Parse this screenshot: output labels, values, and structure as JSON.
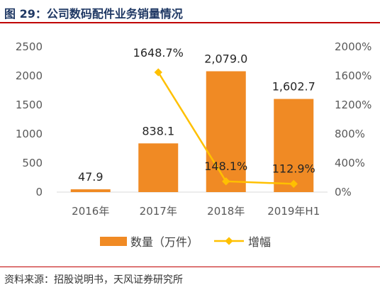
{
  "figure_title": "图 29：公司数码配件业务销量情况",
  "source": "资料来源：招股说明书，天风证券研究所",
  "chart_data": {
    "type": "bar",
    "categories": [
      "2016年",
      "2017年",
      "2018年",
      "2019年H1"
    ],
    "series": [
      {
        "name": "数量（万件）",
        "type": "bar",
        "axis": "left",
        "values": [
          47.9,
          838.1,
          2079.0,
          1602.7
        ],
        "labels": [
          "47.9",
          "838.1",
          "2,079.0",
          "1,602.7"
        ],
        "color": "#f08a24"
      },
      {
        "name": "增幅",
        "type": "line",
        "axis": "right",
        "values": [
          null,
          1648.7,
          148.1,
          112.9
        ],
        "labels": [
          "",
          "1648.7%",
          "148.1%",
          "112.9%"
        ],
        "color": "#ffc000"
      }
    ],
    "y_left": {
      "min": 0,
      "max": 2500,
      "ticks": [
        0,
        500,
        1000,
        1500,
        2000,
        2500
      ]
    },
    "y_right": {
      "min": 0,
      "max": 2000,
      "ticks": [
        "0%",
        "400%",
        "800%",
        "1200%",
        "1600%",
        "2000%"
      ]
    },
    "legend_position": "bottom",
    "grid": false
  }
}
